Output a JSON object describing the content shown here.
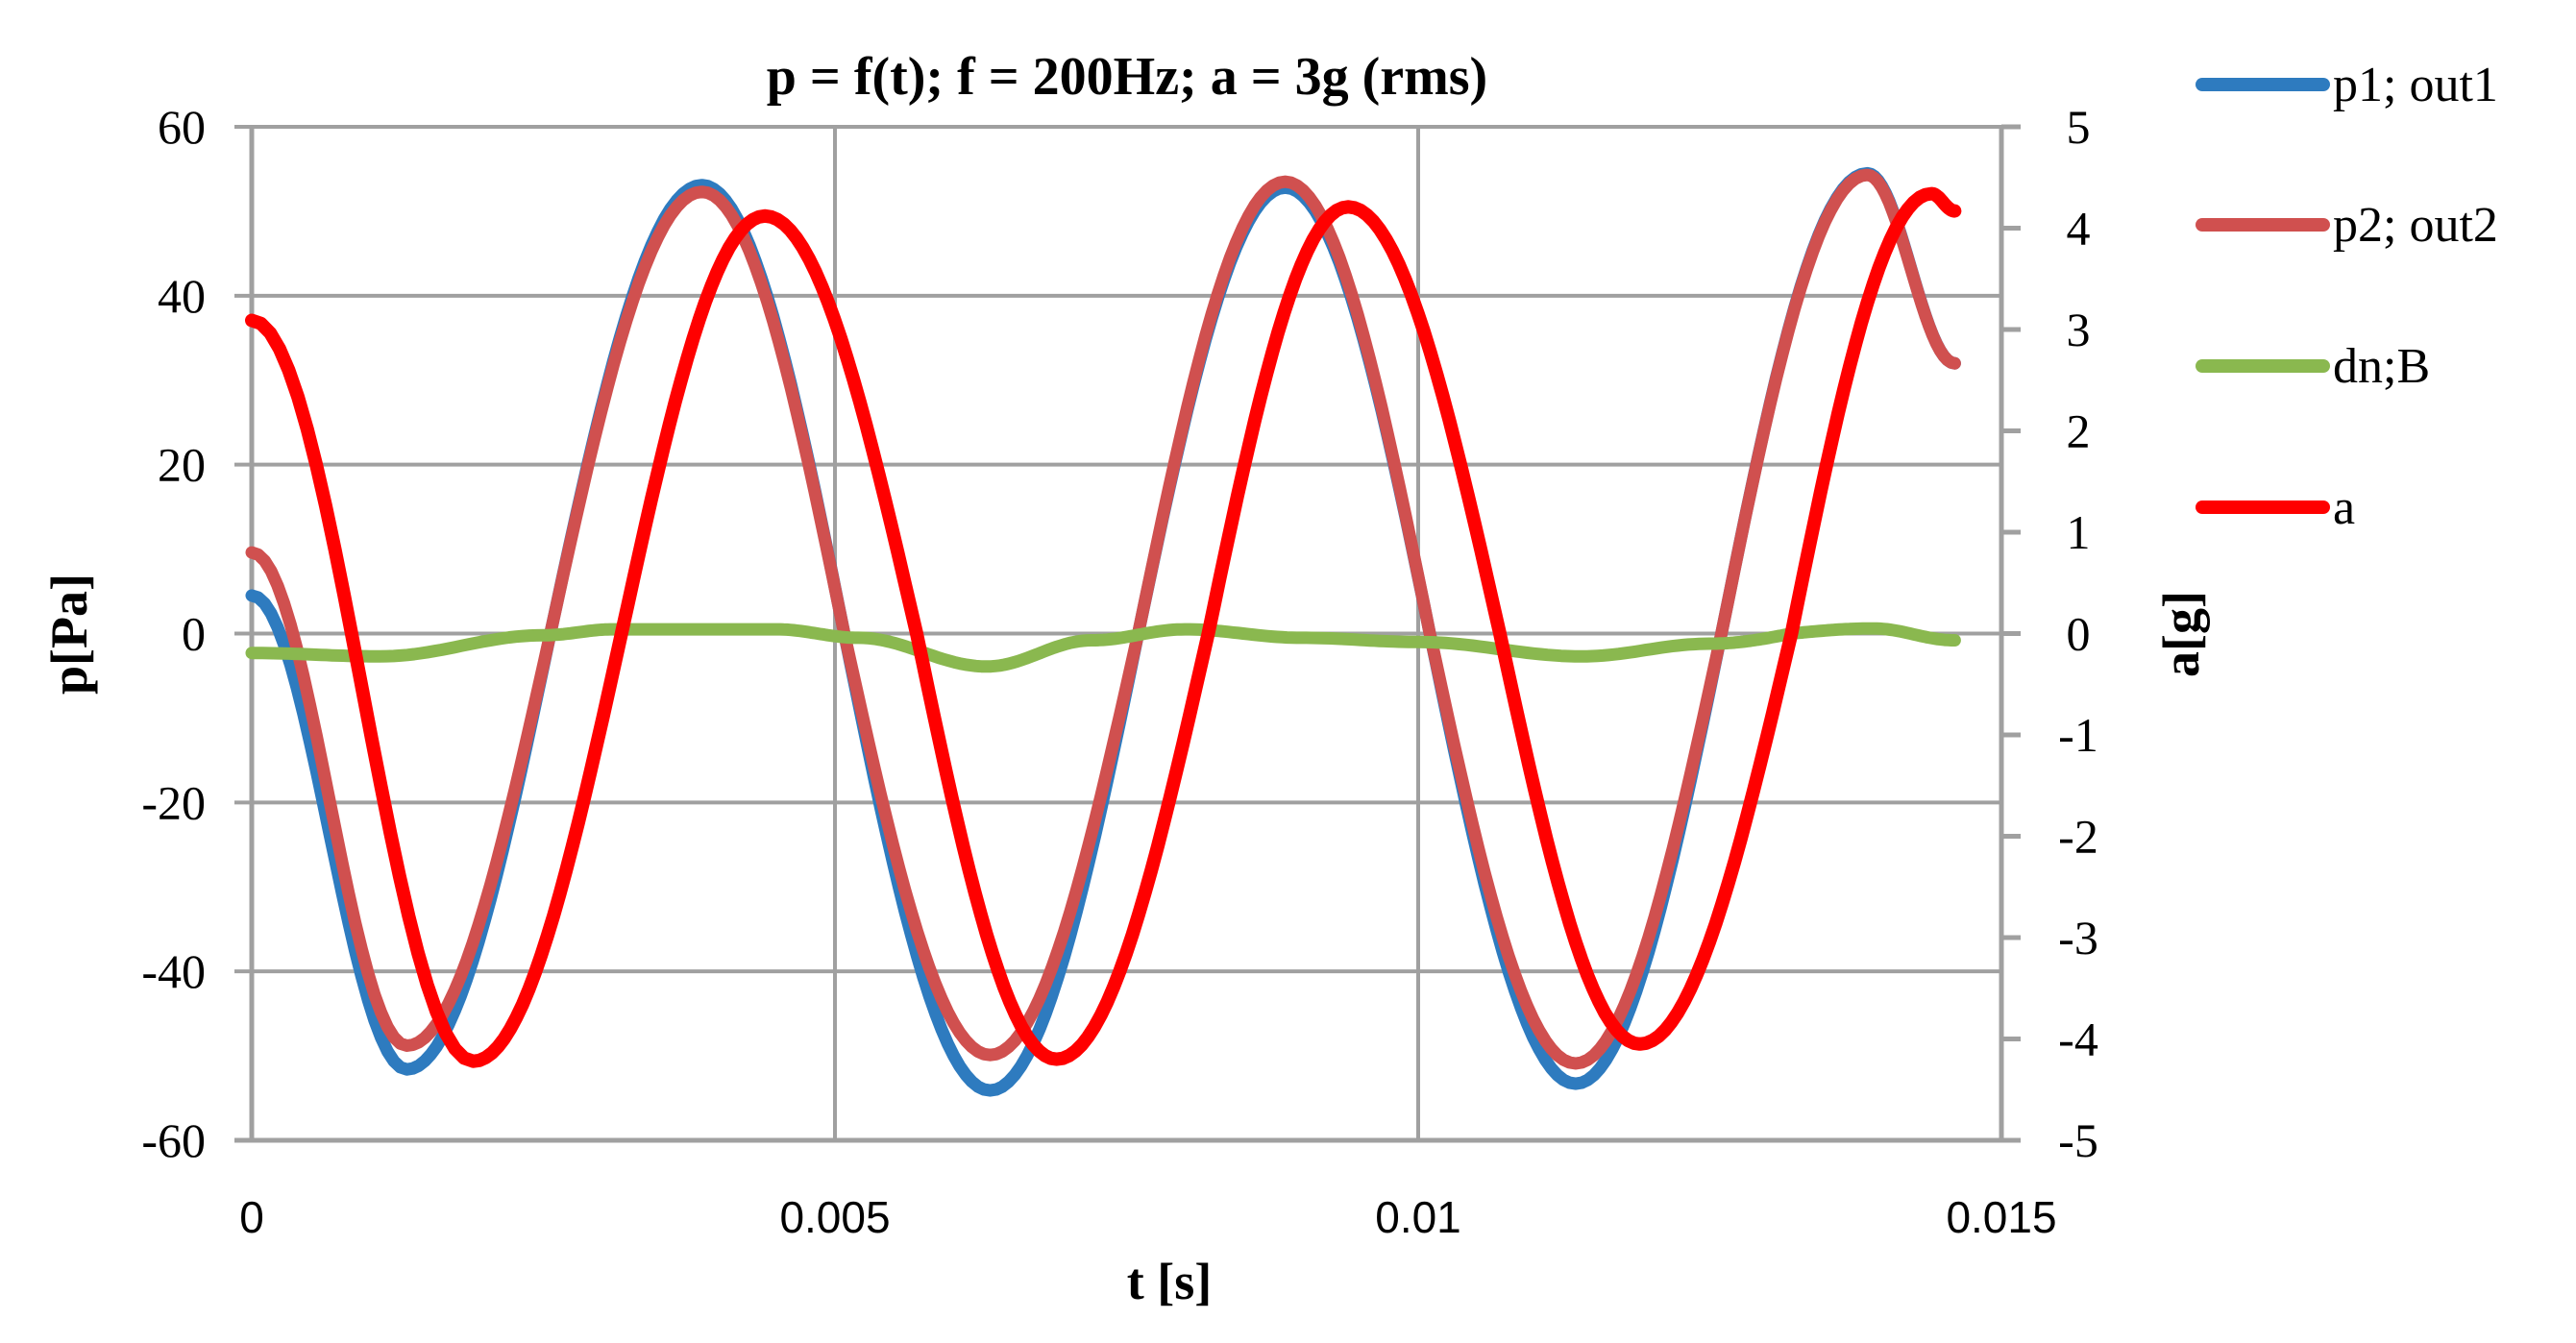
{
  "chart_data": {
    "type": "line",
    "title": "p = f(t); f = 200Hz; a = 3g (rms)",
    "xlabel": "t [s]",
    "ylabel": "p[Pa]",
    "ylabel_right": "a[g]",
    "xlim": [
      0,
      0.015
    ],
    "ylim": [
      -60,
      60
    ],
    "ylim_right": [
      -5,
      5
    ],
    "x_ticks": [
      0,
      0.005,
      0.01,
      0.015
    ],
    "x_tick_labels": [
      "0",
      "0.005",
      "0.01",
      "0.015"
    ],
    "y_ticks": [
      60,
      40,
      20,
      0,
      -20,
      -40,
      -60
    ],
    "y_tick_labels": [
      "60",
      "40",
      "20",
      "0",
      "-20",
      "-40",
      "-60"
    ],
    "y_right_ticks": [
      5,
      4,
      3,
      2,
      1,
      0,
      -1,
      -2,
      -3,
      -4,
      -5
    ],
    "y_right_tick_labels": [
      "5",
      "4",
      "3",
      "2",
      "1",
      "0",
      "-1",
      "-2",
      "-3",
      "-4",
      "-5"
    ],
    "grid": {
      "horizontal": true,
      "vertical": true
    },
    "legend_position": "right",
    "series": [
      {
        "name": "p1; out1",
        "axis": "left",
        "color": "#2e7bbf",
        "x": [
          0,
          0.00133,
          0.00256,
          0.00386,
          0.00508,
          0.00633,
          0.0076,
          0.00886,
          0.0101,
          0.01135,
          0.0126,
          0.01385,
          0.0146
        ],
        "values": [
          4.5,
          -51.6,
          0,
          53.1,
          0,
          -54.1,
          0,
          52.8,
          0,
          -53.3,
          0,
          54.5,
          32
        ]
      },
      {
        "name": "p2; out2",
        "axis": "left",
        "color": "#d0504f",
        "x": [
          0,
          0.00133,
          0.00256,
          0.00386,
          0.00508,
          0.00633,
          0.0076,
          0.00886,
          0.0101,
          0.01135,
          0.0126,
          0.01385,
          0.0146
        ],
        "values": [
          9.6,
          -48.8,
          0,
          52.3,
          0,
          -49.9,
          0,
          53.5,
          0,
          -50.9,
          0,
          54.3,
          32
        ]
      },
      {
        "name": "dn;B",
        "axis": "left",
        "color": "#8ab84f",
        "x": [
          0,
          0.0011,
          0.0025,
          0.0031,
          0.0045,
          0.0052,
          0.0063,
          0.0072,
          0.008,
          0.009,
          0.01,
          0.0114,
          0.0125,
          0.0132,
          0.0139,
          0.0146
        ],
        "values": [
          -2.3,
          -2.7,
          -0.2,
          0.5,
          0.5,
          -0.5,
          -3.9,
          -0.8,
          0.5,
          -0.5,
          -1.0,
          -2.7,
          -1.2,
          0,
          0.6,
          -0.8
        ]
      },
      {
        "name": "a",
        "axis": "right",
        "color": "#ff0000",
        "x": [
          0,
          0.0019,
          0.00317,
          0.0044,
          0.0057,
          0.0069,
          0.0082,
          0.0094,
          0.0107,
          0.0119,
          0.0132,
          0.0144,
          0.0146
        ],
        "values": [
          3.09,
          -4.22,
          0,
          4.12,
          0,
          -4.2,
          0,
          4.21,
          0,
          -4.05,
          0,
          4.34,
          4.17
        ]
      }
    ]
  },
  "legend": {
    "items": [
      {
        "label": "p1; out1",
        "color": "#2e7bbf"
      },
      {
        "label": "p2; out2",
        "color": "#d0504f"
      },
      {
        "label": "dn;B",
        "color": "#8ab84f"
      },
      {
        "label": "a",
        "color": "#ff0000"
      }
    ]
  }
}
